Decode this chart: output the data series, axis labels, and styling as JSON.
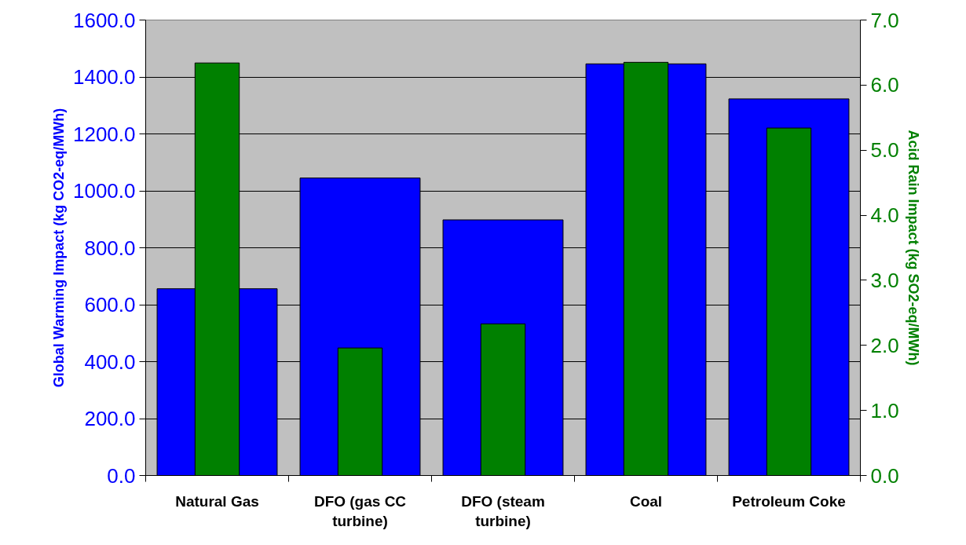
{
  "chart_data": {
    "type": "bar",
    "categories": [
      "Natural Gas",
      "DFO (gas CC turbine)",
      "DFO (steam turbine)",
      "Coal",
      "Petroleum Coke"
    ],
    "series": [
      {
        "color": "#0000ff",
        "values": [
          656,
          1045,
          898,
          1446,
          1323
        ]
      },
      {
        "color": "#008000",
        "axis": "y2",
        "values": [
          6.34,
          1.96,
          2.33,
          6.35,
          5.34
        ]
      }
    ],
    "ylabel": "Global Warming Impact (kg CO2-eq/MWh)",
    "y2label": "Acid Rain Impact (kg SO2-eq/MWh)",
    "ylim": [
      0,
      1600
    ],
    "yticks": [
      {
        "value": 0,
        "label": "0.0"
      },
      {
        "value": 200,
        "label": "200.0"
      },
      {
        "value": 400,
        "label": "400.0"
      },
      {
        "value": 600,
        "label": "600.0"
      },
      {
        "value": 800,
        "label": "800.0"
      },
      {
        "value": 1000,
        "label": "1000.0"
      },
      {
        "value": 1200,
        "label": "1200.0"
      },
      {
        "value": 1400,
        "label": "1400.0"
      },
      {
        "value": 1600,
        "label": "1600.0"
      }
    ],
    "y2lim": [
      0,
      7
    ],
    "y2ticks": [
      {
        "value": 0,
        "label": "0.0"
      },
      {
        "value": 1,
        "label": "1.0"
      },
      {
        "value": 2,
        "label": "2.0"
      },
      {
        "value": 3,
        "label": "3.0"
      },
      {
        "value": 4,
        "label": "4.0"
      },
      {
        "value": 5,
        "label": "5.0"
      },
      {
        "value": 6,
        "label": "6.0"
      },
      {
        "value": 7,
        "label": "7.0"
      }
    ],
    "grid": "y"
  }
}
